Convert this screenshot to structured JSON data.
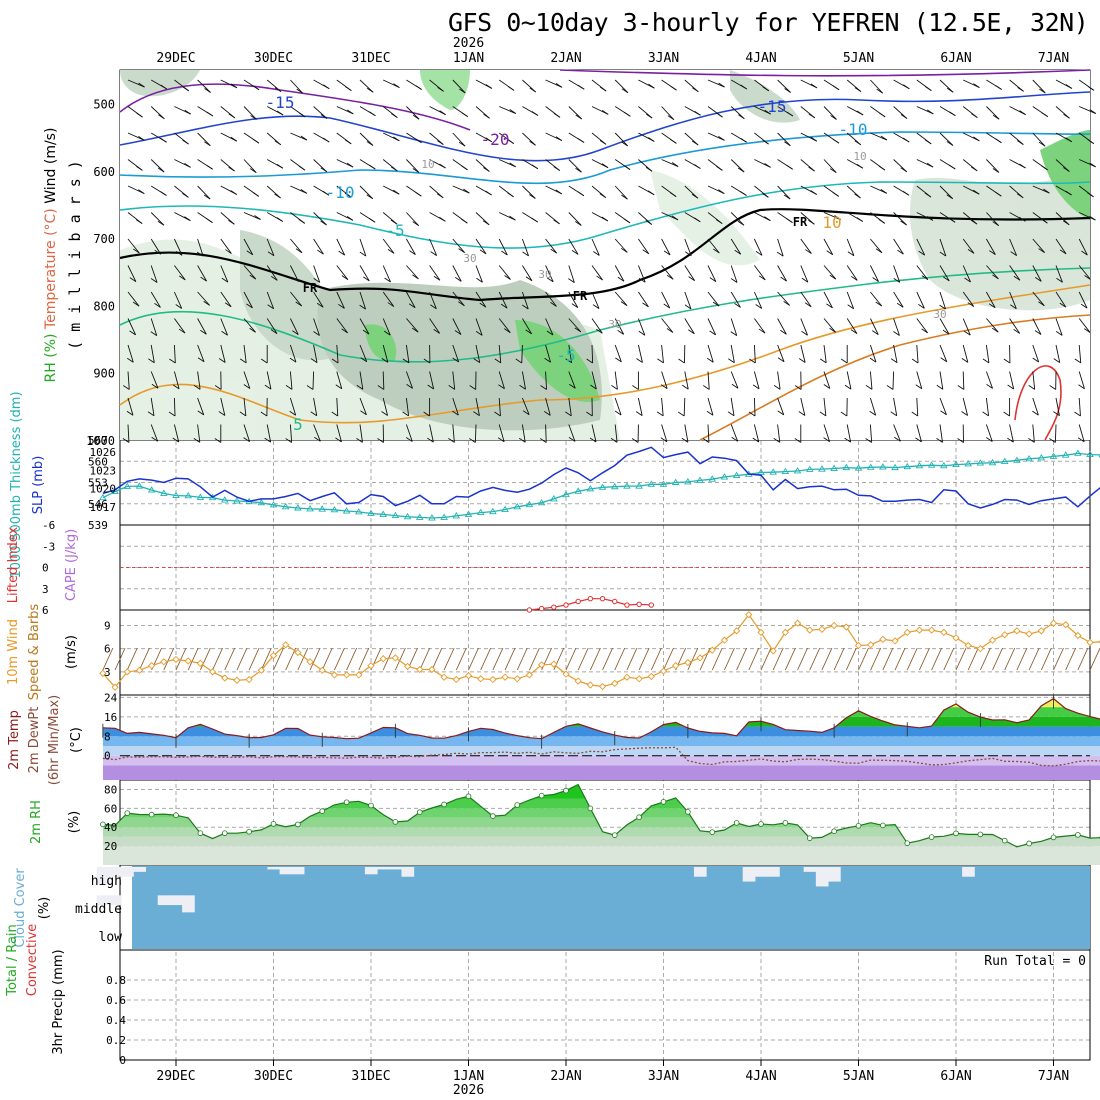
{
  "title": "GFS 0~10day 3-hourly for YEFREN (12.5E, 32N)",
  "year_label": "2026",
  "date_labels": [
    "29DEC",
    "30DEC",
    "31DEC",
    "1JAN",
    "2JAN",
    "3JAN",
    "4JAN",
    "5JAN",
    "6JAN",
    "7JAN"
  ],
  "colors": {
    "grid": "#aaaaaa",
    "slp": "#1a33cc",
    "thick": "#22b3b3",
    "lifted": "#dd3333",
    "wind": "#e69a2a",
    "rh": "#22aa22",
    "cloud": "#6aaed6",
    "cloud_light": "#eeeef5"
  },
  "chart_data": [
    {
      "type": "contour",
      "name": "upper-air",
      "ylabel_parts": [
        "Wind (m/s)",
        "Temperature (°C)",
        "RH (%)"
      ],
      "yunits": "( m i l l i b a r s )",
      "yticks": [
        "500",
        "600",
        "700",
        "800",
        "900",
        "1000"
      ],
      "ylim": [
        450,
        1000
      ],
      "contour_labels": [
        {
          "text": "-15",
          "c": "#2244cc"
        },
        {
          "text": "-20",
          "c": "#7a1fa2"
        },
        {
          "text": "-15",
          "c": "#2244cc"
        },
        {
          "text": "-10",
          "c": "#1a9ad6"
        },
        {
          "text": "-10",
          "c": "#1a9ad6"
        },
        {
          "text": "-5",
          "c": "#1fb8b8"
        },
        {
          "text": "-5",
          "c": "#1fb8b8"
        },
        {
          "text": "5",
          "c": "#22bb88"
        },
        {
          "text": "10",
          "c": "#e69a2a"
        },
        {
          "text": "FR",
          "c": "#000000"
        },
        {
          "text": "FR",
          "c": "#000000"
        },
        {
          "text": "FR",
          "c": "#000000"
        },
        {
          "text": "30",
          "c": "#999999"
        },
        {
          "text": "30",
          "c": "#999999"
        },
        {
          "text": "30",
          "c": "#999999"
        },
        {
          "text": "30",
          "c": "#999999"
        },
        {
          "text": "10",
          "c": "#999999"
        },
        {
          "text": "10",
          "c": "#999999"
        }
      ]
    },
    {
      "type": "line",
      "name": "slp-thickness",
      "ylabel_left": "1000-500mb Thickness (dm)",
      "ylabel_right": "SLP (mb)",
      "left_ticks": [
        "567",
        "560",
        "553",
        "546",
        "539"
      ],
      "right_ticks": [
        "1026",
        "1023",
        "1020",
        "1017"
      ],
      "slp_range": [
        1014,
        1028
      ],
      "thick_range": [
        539,
        567
      ],
      "slp": [
        1019.2,
        1019.8,
        1021.2,
        1021.6,
        1021.4,
        1021.0,
        1021.7,
        1021.6,
        1020.3,
        1018.6,
        1019.7,
        1018.6,
        1017.9,
        1018.3,
        1018.3,
        1018.7,
        1019.2,
        1018.0,
        1018.7,
        1019.3,
        1017.5,
        1017.7,
        1019.0,
        1018.7,
        1017.2,
        1017.9,
        1018.9,
        1017.5,
        1017.5,
        1018.7,
        1018.6,
        1019.6,
        1020.2,
        1019.7,
        1019.4,
        1019.9,
        1020.9,
        1022.3,
        1023.4,
        1022.6,
        1021.3,
        1022.6,
        1023.8,
        1025.5,
        1026.1,
        1026.8,
        1025.1,
        1025.6,
        1026.0,
        1024.1,
        1025.2,
        1025.0,
        1024.6,
        1022.4,
        1022.2,
        1019.8,
        1021.5,
        1020.0,
        1020.3,
        1020.4,
        1019.8,
        1019.9,
        1018.9,
        1018.8,
        1017.9,
        1017.9,
        1018.1,
        1018.2,
        1017.7,
        1019.8,
        1019.6,
        1017.5,
        1016.8,
        1017.4,
        1018.2,
        1018.1,
        1017.4,
        1018.0,
        1018.3,
        1018.6,
        1017.0,
        1018.8,
        1020.4,
        1020.4,
        1021.6
      ],
      "thick": [
        548.0,
        550.0,
        551.7,
        551.8,
        550.5,
        549.4,
        548.7,
        548.6,
        548.1,
        548.0,
        547.2,
        546.9,
        546.7,
        546.3,
        545.6,
        545.0,
        544.6,
        544.3,
        544.2,
        544.0,
        543.6,
        543.3,
        542.8,
        542.5,
        542.1,
        541.7,
        541.5,
        541.3,
        541.5,
        542.0,
        542.5,
        543.1,
        543.4,
        544.1,
        545.0,
        545.7,
        546.3,
        547.6,
        549.0,
        550.1,
        550.9,
        551.4,
        551.6,
        551.8,
        551.8,
        552.4,
        552.4,
        553.0,
        553.2,
        553.7,
        554.1,
        554.8,
        555.3,
        555.7,
        556.3,
        556.4,
        556.6,
        556.8,
        557.3,
        557.4,
        557.6,
        557.9,
        557.7,
        558.0,
        558.1,
        557.9,
        558.2,
        558.5,
        558.7,
        558.5,
        558.9,
        559.1,
        559.4,
        559.5,
        559.9,
        560.3,
        560.8,
        561.1,
        561.6,
        562.0,
        562.6,
        562.2,
        562.1,
        561.3,
        561.1
      ]
    },
    {
      "type": "line",
      "name": "lifted-index-cape",
      "ylabel_left": "Lifted Index",
      "ylabel_right": "CAPE (J/kg)",
      "yticks": [
        "-6",
        "-3",
        "0",
        "3",
        "6"
      ],
      "ylim": [
        -6,
        6
      ],
      "x_start_index": 35,
      "values": [
        6.0,
        5.8,
        5.6,
        5.3,
        4.8,
        4.4,
        4.4,
        4.8,
        5.3,
        5.2,
        5.3
      ]
    },
    {
      "type": "line",
      "name": "10m-wind",
      "ylabel_left": "10m Wind",
      "ylabel_mid": "Speed & Barbs",
      "units": "(m/s)",
      "yticks": [
        "9",
        "6",
        "3"
      ],
      "ylim": [
        0,
        11
      ],
      "values": [
        2.8,
        1.0,
        3.0,
        3.2,
        3.8,
        4.3,
        4.6,
        4.4,
        4.1,
        3.0,
        2.2,
        1.9,
        2.0,
        3.2,
        5.1,
        6.5,
        5.5,
        4.3,
        3.2,
        2.6,
        2.6,
        2.6,
        3.8,
        4.7,
        4.8,
        3.7,
        3.3,
        3.3,
        2.3,
        2.0,
        2.5,
        2.1,
        2.0,
        2.3,
        2.1,
        2.6,
        3.9,
        4.0,
        2.7,
        1.8,
        1.3,
        1.1,
        1.5,
        2.3,
        2.1,
        2.4,
        3.1,
        3.8,
        4.2,
        4.8,
        5.8,
        7.1,
        8.3,
        10.4,
        8.1,
        5.7,
        8.1,
        9.3,
        8.4,
        8.5,
        9.0,
        8.8,
        6.4,
        6.5,
        7.2,
        7.0,
        8.1,
        8.4,
        8.4,
        8.1,
        7.4,
        6.4,
        6.0,
        7.1,
        7.8,
        8.3,
        7.9,
        8.3,
        9.3,
        9.1,
        7.7,
        6.8,
        6.9,
        5.6,
        4.6
      ]
    },
    {
      "type": "area",
      "name": "2m-temp",
      "ylabel_parts": [
        "2m Temp",
        "2m DewPt",
        "(6hr Min/Max)"
      ],
      "units": "(°C)",
      "yticks": [
        "24",
        "16",
        "8",
        "0"
      ],
      "ylim": [
        -10,
        25
      ],
      "temp": [
        11.5,
        11.3,
        9.2,
        9.6,
        9.0,
        8.4,
        7.4,
        11.5,
        12.9,
        11.0,
        8.9,
        8.3,
        7.4,
        7.5,
        8.6,
        11.3,
        11.2,
        8.5,
        7.8,
        7.5,
        7.0,
        7.2,
        9.4,
        11.6,
        11.5,
        9.1,
        8.4,
        7.3,
        7.2,
        8.3,
        10.0,
        11.3,
        10.8,
        9.3,
        8.3,
        7.4,
        7.0,
        9.6,
        12.1,
        13.1,
        11.4,
        9.8,
        8.5,
        7.5,
        7.3,
        9.8,
        12.8,
        13.7,
        11.4,
        10.0,
        9.4,
        9.2,
        8.2,
        13.9,
        14.2,
        12.9,
        10.7,
        10.4,
        10.1,
        9.6,
        11.5,
        15.6,
        18.5,
        16.2,
        14.3,
        12.7,
        12.1,
        11.5,
        12.2,
        18.8,
        21.3,
        17.9,
        15.9,
        14.7,
        14.8,
        13.6,
        14.7,
        20.5,
        23.5,
        19.4,
        17.5,
        16.1,
        14.9,
        14.8,
        14.1
      ],
      "dewpt": [
        -1.1,
        -1.6,
        -0.5,
        -0.6,
        -0.4,
        -0.4,
        -0.7,
        -0.5,
        -0.3,
        -0.6,
        -0.6,
        -0.7,
        -0.4,
        -0.9,
        -0.4,
        -0.4,
        -0.5,
        -0.8,
        -0.7,
        -0.9,
        -1.0,
        -0.6,
        -0.7,
        -1.0,
        -0.6,
        -0.2,
        -0.4,
        0.2,
        0.5,
        1.0,
        0.7,
        1.3,
        1.3,
        1.5,
        1.0,
        1.4,
        0.7,
        1.6,
        1.2,
        1.0,
        1.8,
        1.6,
        2.5,
        2.8,
        3.1,
        3.3,
        3.2,
        3.5,
        -2.0,
        -3.2,
        -3.6,
        -2.5,
        -2.4,
        -1.9,
        -1.3,
        -2.2,
        -2.5,
        -1.5,
        -1.4,
        -1.6,
        -2.2,
        -3.0,
        -3.1,
        -1.8,
        -1.9,
        -2.0,
        -2.3,
        -3.0,
        -3.8,
        -3.6,
        -2.9,
        -2.1,
        -1.6,
        -1.1,
        -2.3,
        -2.4,
        -2.7,
        -4.0,
        -4.2,
        -3.5,
        -2.4,
        -2.0,
        -2.2,
        -3.0,
        -5.0
      ]
    },
    {
      "type": "area",
      "name": "2m-rh",
      "ylabel_left": "2m RH",
      "units": "(%)",
      "yticks": [
        "80",
        "60",
        "40",
        "20"
      ],
      "ylim": [
        0,
        90
      ],
      "values": [
        43.0,
        42.0,
        54.9,
        53.5,
        53.4,
        53.9,
        52.7,
        49.9,
        33.7,
        28.0,
        33.7,
        33.7,
        35.2,
        37.2,
        43.5,
        40.6,
        43.0,
        51.6,
        57.1,
        63.6,
        66.4,
        67.5,
        63.0,
        53.4,
        45.6,
        46.6,
        55.9,
        60.3,
        64.1,
        69.6,
        72.7,
        62.2,
        51.8,
        52.7,
        63.5,
        68.8,
        73.4,
        74.7,
        78.8,
        85.1,
        59.9,
        35.3,
        31.6,
        42.5,
        50.6,
        62.6,
        66.8,
        71.0,
        56.2,
        36.2,
        34.8,
        37.1,
        44.6,
        40.8,
        43.4,
        42.6,
        44.6,
        42.5,
        28.4,
        29.2,
        35.8,
        39.2,
        41.5,
        44.8,
        41.9,
        42.8,
        23.1,
        25.7,
        29.6,
        30.4,
        33.5,
        32.4,
        32.4,
        32.3,
        25.8,
        19.2,
        22.8,
        25.1,
        29.2,
        30.6,
        31.9,
        28.5,
        29.0,
        28.1,
        29.0
      ]
    },
    {
      "type": "heatmap",
      "name": "cloud-cover",
      "ylabel_left": "Cloud Cover",
      "units": "(%)",
      "levels": [
        "high",
        "middle",
        "low"
      ],
      "high": [
        0.7,
        0.4,
        0.4,
        0.2,
        0.0,
        0.0,
        0.0,
        0.0,
        0.0,
        0.0,
        0.0,
        0.0,
        0.0,
        0.0,
        0.1,
        0.3,
        0.3,
        0.0,
        0.0,
        0.0,
        0.0,
        0.0,
        0.3,
        0.1,
        0.1,
        0.4,
        0.0,
        0.0,
        0.0,
        0.0,
        0.0,
        0.0,
        0.0,
        0.0,
        0.0,
        0.0,
        0.0,
        0.0,
        0.0,
        0.0,
        0.0,
        0.0,
        0.0,
        0.0,
        0.0,
        0.0,
        0.0,
        0.0,
        0.0,
        0.4,
        0.0,
        0.0,
        0.0,
        0.6,
        0.4,
        0.4,
        0.0,
        0.0,
        0.2,
        0.8,
        0.6,
        0.0,
        0.0,
        0.0,
        0.0,
        0.0,
        0.0,
        0.0,
        0.0,
        0.0,
        0.0,
        0.4,
        0.0,
        0.0,
        0.0,
        0.0,
        0.0,
        0.0,
        0.0,
        0.0,
        0.0,
        0.0,
        0.0,
        0.0,
        0.0
      ],
      "middle": [
        0.4,
        0.4,
        0.0,
        0.0,
        0.0,
        0.4,
        0.4,
        0.7,
        0.0,
        0.0,
        0.0,
        0.0,
        0.0,
        0.0,
        0.0,
        0.0,
        0.0,
        0.0,
        0.0,
        0.0,
        0.0,
        0.0,
        0.0,
        0.0,
        0.0,
        0.0,
        0.0,
        0.0,
        0.0,
        0.0,
        0.0,
        0.0,
        0.0,
        0.0,
        0.0,
        0.0,
        0.0,
        0.0,
        0.0,
        0.0,
        0.0,
        0.0,
        0.0,
        0.0,
        0.0,
        0.0,
        0.0,
        0.0,
        0.0,
        0.0,
        0.0,
        0.0,
        0.0,
        0.0,
        0.0,
        0.0,
        0.0,
        0.0,
        0.0,
        0.0,
        0.0,
        0.0,
        0.0,
        0.0,
        0.0,
        0.0,
        0.0,
        0.0,
        0.0,
        0.0,
        0.0,
        0.0,
        0.0,
        0.0,
        0.0,
        0.0,
        0.0,
        0.0,
        0.0,
        0.0,
        0.0,
        0.0,
        0.0,
        0.0,
        0.0
      ],
      "low": [
        0,
        0,
        0,
        0,
        0,
        0,
        0,
        0,
        0,
        0,
        0,
        0,
        0,
        0,
        0,
        0,
        0,
        0,
        0,
        0,
        0,
        0,
        0,
        0,
        0,
        0,
        0,
        0,
        0,
        0,
        0,
        0,
        0,
        0,
        0,
        0,
        0,
        0,
        0,
        0,
        0,
        0,
        0,
        0,
        0,
        0,
        0,
        0,
        0,
        0,
        0,
        0,
        0,
        0,
        0,
        0,
        0,
        0,
        0,
        0,
        0,
        0,
        0,
        0,
        0,
        0,
        0,
        0,
        0,
        0,
        0,
        0,
        0,
        0,
        0,
        0,
        0,
        0,
        0,
        0,
        0,
        0,
        0,
        0,
        0
      ]
    },
    {
      "type": "bar",
      "name": "precip",
      "ylabel_parts": [
        "Total / Rain",
        "Convective"
      ],
      "ylabel_right": "3hr Precip (mm)",
      "yticks": [
        "0.8",
        "0.6",
        "0.4",
        "0.2",
        "0"
      ],
      "ylim": [
        0,
        1
      ],
      "run_total_label": "Run Total = 0",
      "values": []
    }
  ]
}
